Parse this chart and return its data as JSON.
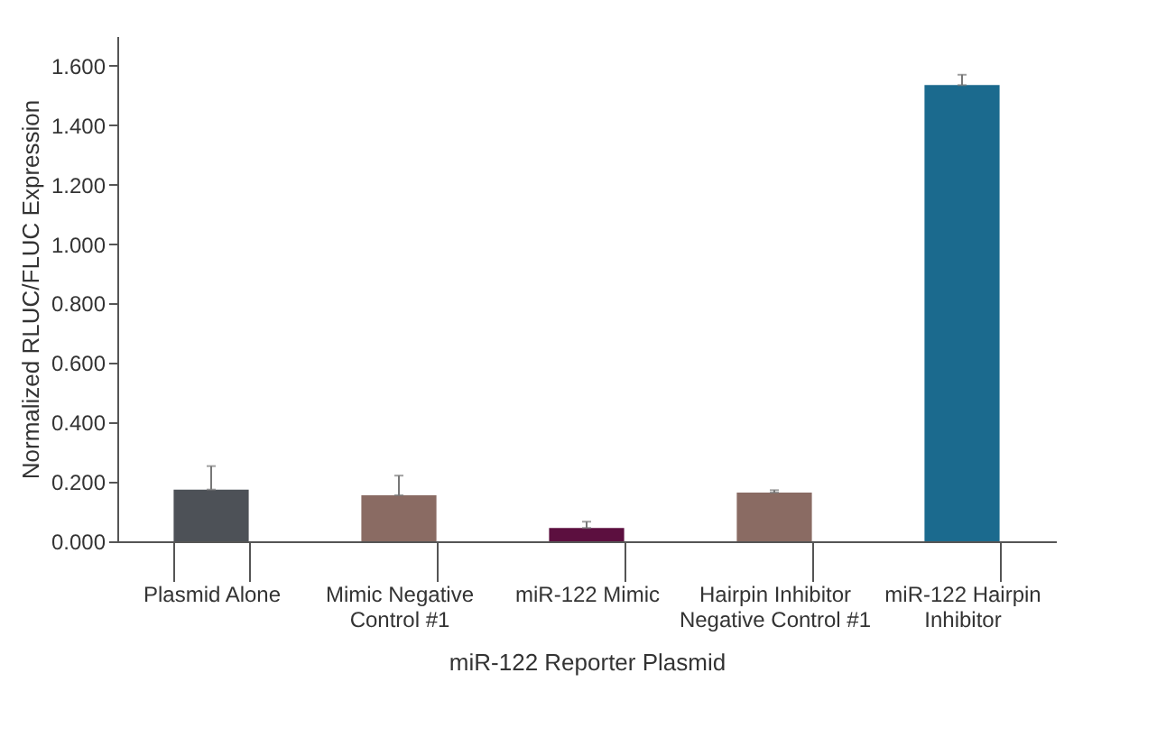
{
  "chart_data": {
    "type": "bar",
    "xlabel": "miR-122 Reporter Plasmid",
    "ylabel": "Normalized RLUC/FLUC Expression",
    "categories": [
      "Plasmid Alone",
      "Mimic Negative\nControl #1",
      "miR-122 Mimic",
      "Hairpin Inhibitor\nNegative Control #1",
      "miR-122 Hairpin\nInhibitor"
    ],
    "values": [
      0.174,
      0.155,
      0.045,
      0.164,
      1.535
    ],
    "colors": [
      "#4d5157",
      "#8a6b63",
      "#5c0f3f",
      "#8a6b63",
      "#1b6a8e"
    ],
    "errors": [
      [
        0.174,
        0.253
      ],
      [
        0.155,
        0.221
      ],
      [
        0.045,
        0.066
      ],
      [
        0.164,
        0.172
      ],
      [
        1.535,
        1.57
      ]
    ],
    "ylim": [
      0,
      1.7
    ],
    "yticks": [
      {
        "value": 0,
        "label": "0.000"
      },
      {
        "value": 0.2,
        "label": "0.200"
      },
      {
        "value": 0.4,
        "label": "0.400"
      },
      {
        "value": 0.6,
        "label": "0.600"
      },
      {
        "value": 0.8,
        "label": "0.800"
      },
      {
        "value": 1.0,
        "label": "1.000"
      },
      {
        "value": 1.2,
        "label": "1.200"
      },
      {
        "value": 1.4,
        "label": "1.400"
      },
      {
        "value": 1.6,
        "label": "1.600"
      }
    ],
    "grid": false
  }
}
